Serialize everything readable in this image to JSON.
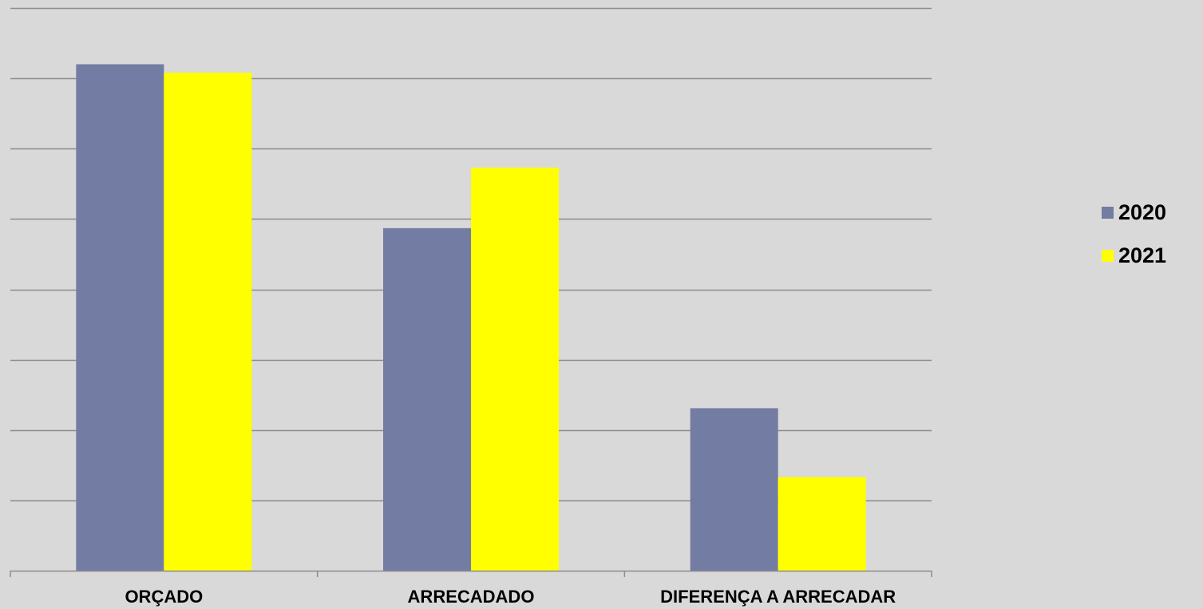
{
  "chart_data": {
    "type": "bar",
    "categories": [
      "ORÇADO",
      "ARRECADADO",
      "DIFERENÇA A ARRECADAR"
    ],
    "series": [
      {
        "name": "2020",
        "color": "#737ca2",
        "values": [
          7.2,
          4.87,
          2.31
        ]
      },
      {
        "name": "2021",
        "color": "#ffff00",
        "values": [
          7.08,
          5.73,
          1.33
        ]
      }
    ],
    "ylim": [
      0,
      8
    ],
    "grid": true,
    "legend_position": "right"
  }
}
